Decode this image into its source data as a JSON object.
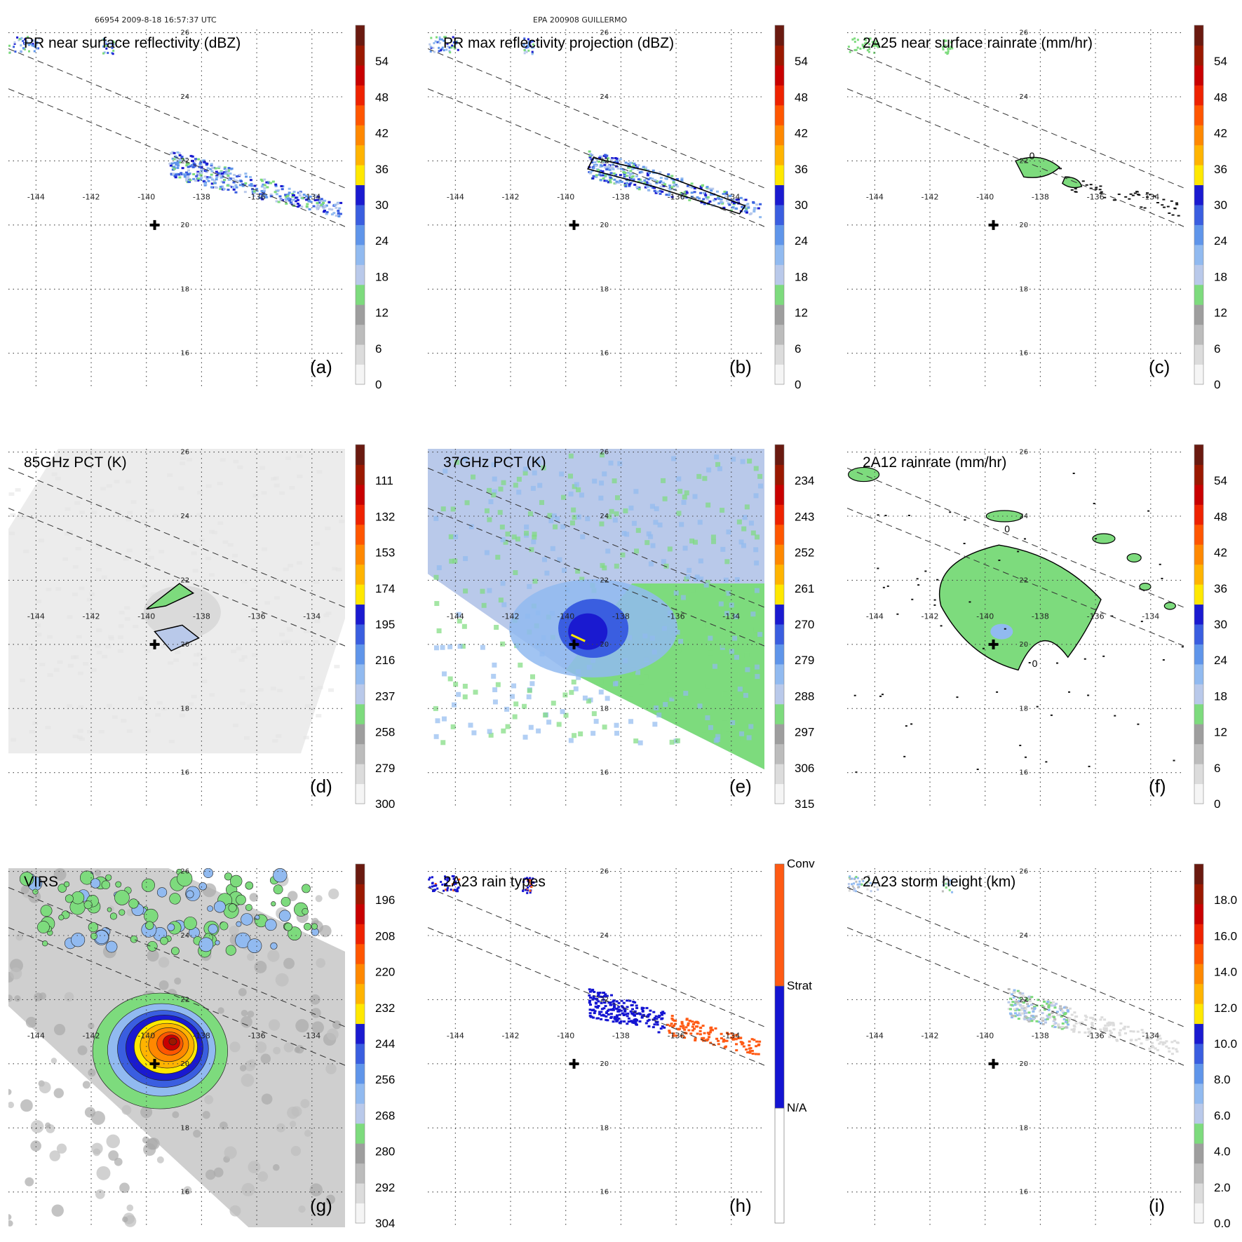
{
  "header": {
    "left": "66954 2009-8-18 16:57:37 UTC",
    "center": "EPA 200908 GUILLERMO"
  },
  "map": {
    "lon_ticks": [
      -144,
      -142,
      -140,
      -138,
      -136,
      -134
    ],
    "lat_ticks": [
      26,
      24,
      22,
      20,
      18,
      16
    ],
    "lon_range": [
      -145,
      -132.8
    ],
    "lat_range": [
      14.9,
      26.1
    ],
    "storm_center": {
      "lon": -139.7,
      "lat": 20
    }
  },
  "colors": {
    "palette": [
      "#f5f5f5",
      "#dcdcdc",
      "#bcbcbc",
      "#9e9e9e",
      "#7ddb7d",
      "#b9c9ea",
      "#91baf0",
      "#5f95ea",
      "#3a5ee0",
      "#1a1ad0",
      "#ffe800",
      "#ffb400",
      "#ff8800",
      "#ff5600",
      "#ee2200",
      "#c80000",
      "#9a1800",
      "#6a1a10"
    ],
    "conv": "#ff5a14",
    "strat": "#1414d2",
    "na": "#ffffff"
  },
  "chart_data": [
    {
      "id": "a",
      "type": "heatmap",
      "title": "PR near surface reflectivity (dBZ)",
      "panel_label": "(a)",
      "colorbar": {
        "ticks": [
          "0",
          "6",
          "12",
          "18",
          "24",
          "30",
          "36",
          "42",
          "48",
          "54"
        ],
        "range": [
          0,
          60
        ]
      },
      "scene": "swath"
    },
    {
      "id": "b",
      "type": "heatmap",
      "title": "PR max reflectivity projection (dBZ)",
      "panel_label": "(b)",
      "colorbar": {
        "ticks": [
          "0",
          "6",
          "12",
          "18",
          "24",
          "30",
          "36",
          "42",
          "48",
          "54"
        ],
        "range": [
          0,
          60
        ]
      },
      "scene": "swath"
    },
    {
      "id": "c",
      "type": "heatmap",
      "title": "2A25 near surface rainrate (mm/hr)",
      "panel_label": "(c)",
      "colorbar": {
        "ticks": [
          "0",
          "6",
          "12",
          "18",
          "24",
          "30",
          "36",
          "42",
          "48",
          "54"
        ],
        "range": [
          0,
          60
        ]
      },
      "scene": "swath_rain",
      "contour_label": "0"
    },
    {
      "id": "d",
      "type": "heatmap",
      "title": "85GHz PCT (K)",
      "panel_label": "(d)",
      "colorbar": {
        "ticks": [
          "300",
          "279",
          "258",
          "237",
          "216",
          "195",
          "174",
          "153",
          "132",
          "111"
        ],
        "range": [
          300,
          90
        ]
      },
      "scene": "pct85"
    },
    {
      "id": "e",
      "type": "heatmap",
      "title": "37GHz PCT (K)",
      "panel_label": "(e)",
      "colorbar": {
        "ticks": [
          "315",
          "306",
          "297",
          "288",
          "279",
          "270",
          "261",
          "252",
          "243",
          "234"
        ],
        "range": [
          315,
          225
        ]
      },
      "scene": "pct37"
    },
    {
      "id": "f",
      "type": "heatmap",
      "title": "2A12 rainrate (mm/hr)",
      "panel_label": "(f)",
      "colorbar": {
        "ticks": [
          "0",
          "6",
          "12",
          "18",
          "24",
          "30",
          "36",
          "42",
          "48",
          "54"
        ],
        "range": [
          0,
          60
        ]
      },
      "scene": "rain12",
      "contour_label": "0"
    },
    {
      "id": "g",
      "type": "heatmap",
      "title": "VIRS",
      "panel_label": "(g)",
      "colorbar": {
        "ticks": [
          "304",
          "292",
          "280",
          "268",
          "256",
          "244",
          "232",
          "220",
          "208",
          "196"
        ],
        "range": [
          304,
          184
        ]
      },
      "scene": "virs"
    },
    {
      "id": "h",
      "type": "heatmap",
      "title": "2A23 rain types",
      "panel_label": "(h)",
      "colorbar": {
        "categories": [
          "Conv",
          "Strat",
          "N/A"
        ]
      },
      "scene": "raintype"
    },
    {
      "id": "i",
      "type": "heatmap",
      "title": "2A23 storm height (km)",
      "panel_label": "(i)",
      "colorbar": {
        "ticks": [
          "0.0",
          "2.0",
          "4.0",
          "6.0",
          "8.0",
          "10.0",
          "12.0",
          "14.0",
          "16.0",
          "18.0"
        ],
        "range": [
          0,
          20
        ]
      },
      "scene": "height"
    }
  ]
}
